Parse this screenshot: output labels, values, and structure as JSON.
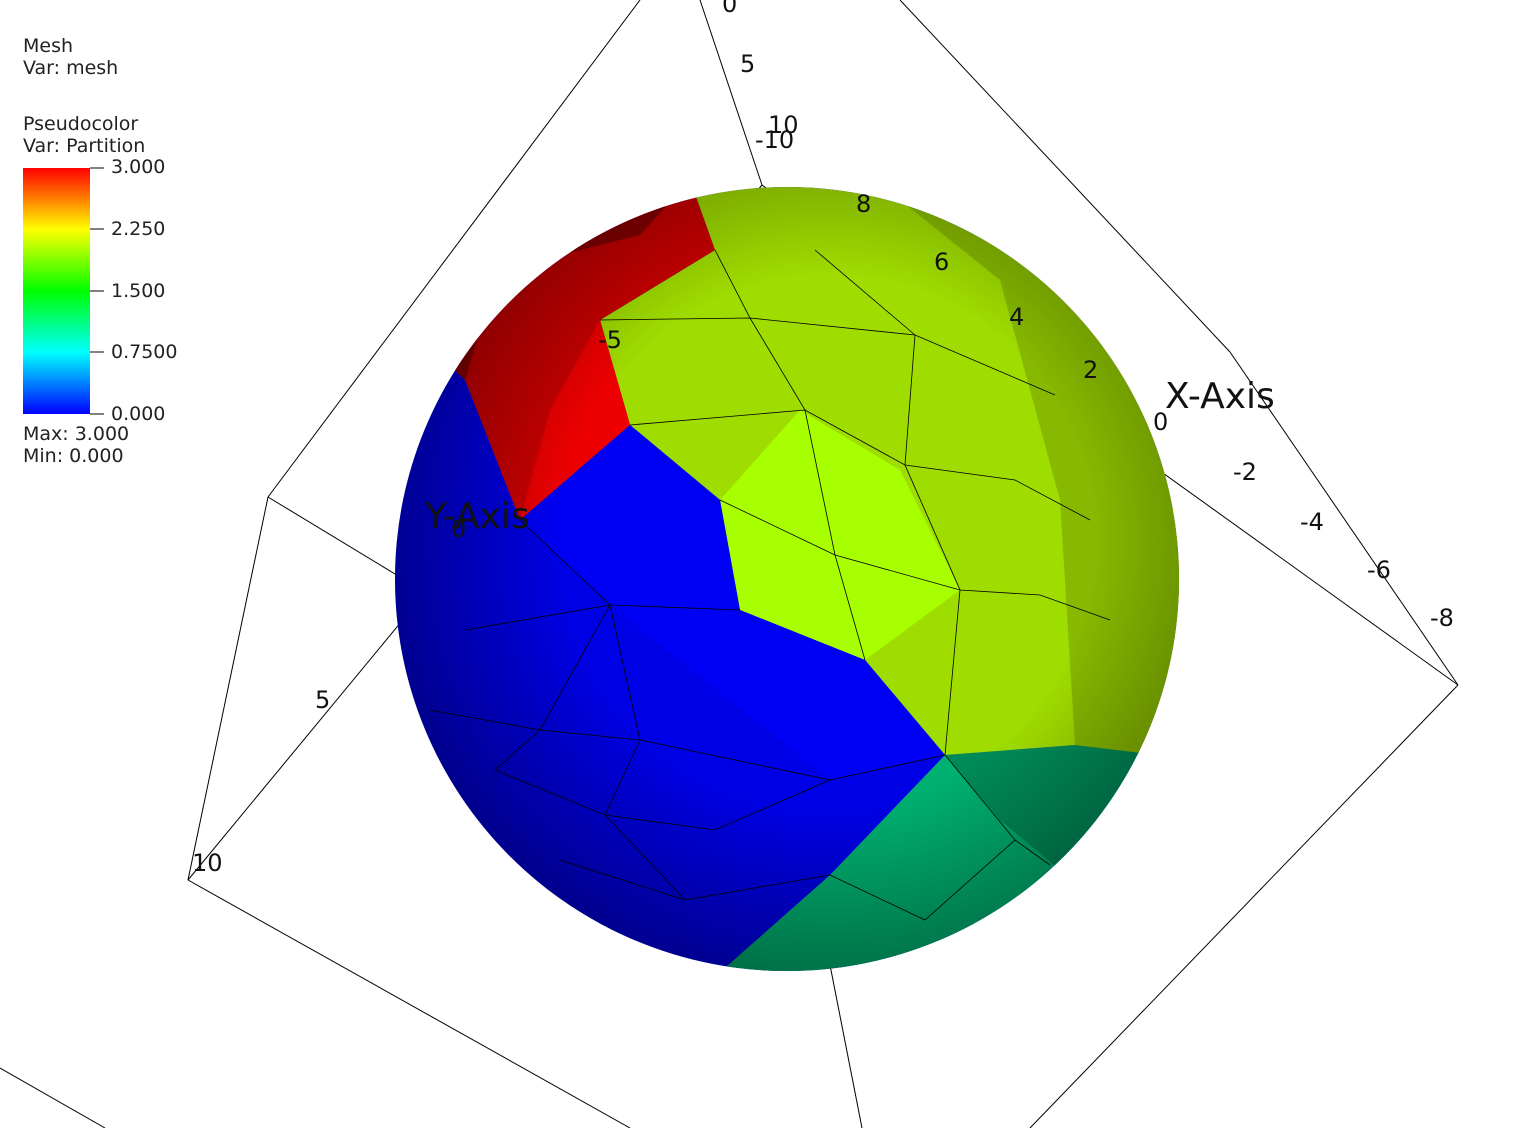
{
  "legend": {
    "mesh": {
      "title": "Mesh",
      "var": "Var: mesh"
    },
    "pseudocolor": {
      "title": "Pseudocolor",
      "var": "Var: Partition",
      "labels": [
        "3.000",
        "2.250",
        "1.500",
        "0.7500",
        "0.000"
      ],
      "max": "Max:  3.000",
      "min": "Min:  0.000"
    }
  },
  "axes": {
    "x_title": "X-Axis",
    "y_title": "Y-Axis",
    "x_ticks": [
      "8",
      "6",
      "4",
      "2",
      "0",
      "-2",
      "-4",
      "-6",
      "-8"
    ],
    "y_ticks": [
      "-5",
      "0",
      "5",
      "10"
    ],
    "z_ticks": [
      "0",
      "5",
      "10",
      "-10"
    ]
  }
}
